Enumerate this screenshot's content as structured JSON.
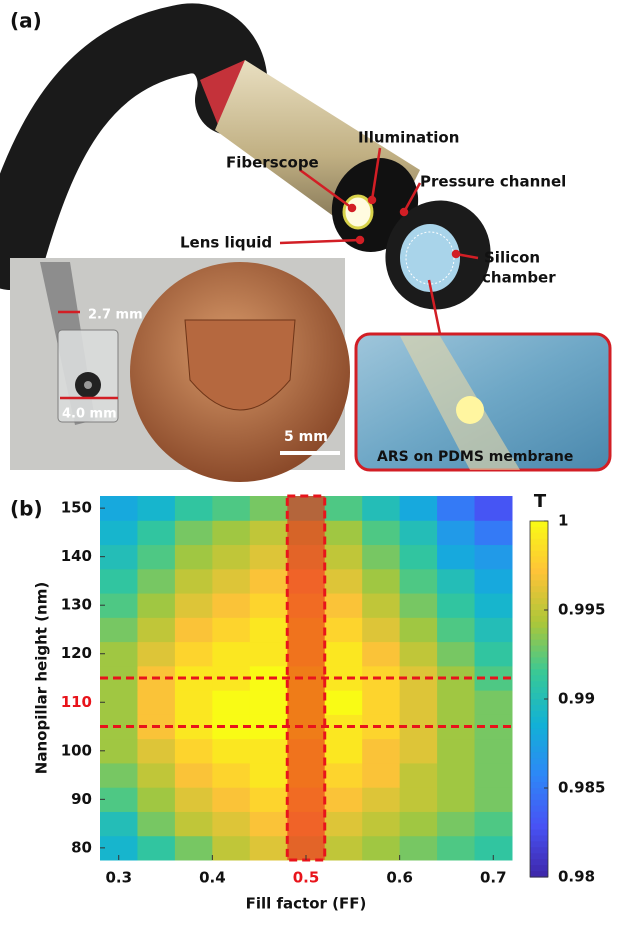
{
  "panel_a": {
    "label": "(a)",
    "illumination": "Illumination",
    "fiberscope": "Fiberscope",
    "pressure_channel": "Pressure channel",
    "lens_liquid": "Lens liquid",
    "silicon_chamber": [
      "Silicon",
      "chamber"
    ],
    "size_tube": "2.7 mm",
    "size_body": "4.0 mm",
    "scale_bar": "5 mm",
    "inset": "ARS on PDMS membrane"
  },
  "chart_data": {
    "type": "heatmap",
    "panel_label": "(b)",
    "xlabel": "Fill factor (FF)",
    "ylabel": "Nanopillar height (nm)",
    "x": [
      0.3,
      0.34,
      0.38,
      0.42,
      0.46,
      0.5,
      0.54,
      0.58,
      0.62,
      0.66,
      0.7
    ],
    "y": [
      80,
      85,
      90,
      95,
      100,
      105,
      110,
      115,
      120,
      125,
      130,
      135,
      140,
      145,
      150
    ],
    "z": [
      [
        0.989,
        0.991,
        0.993,
        0.995,
        0.996,
        0.996,
        0.995,
        0.994,
        0.993,
        0.992,
        0.991
      ],
      [
        0.99,
        0.993,
        0.995,
        0.996,
        0.997,
        0.997,
        0.996,
        0.995,
        0.994,
        0.993,
        0.992
      ],
      [
        0.992,
        0.994,
        0.996,
        0.997,
        0.998,
        0.998,
        0.997,
        0.996,
        0.995,
        0.994,
        0.993
      ],
      [
        0.993,
        0.995,
        0.997,
        0.998,
        0.999,
        0.999,
        0.998,
        0.997,
        0.995,
        0.994,
        0.993
      ],
      [
        0.994,
        0.996,
        0.998,
        0.999,
        0.999,
        0.999,
        0.999,
        0.997,
        0.996,
        0.994,
        0.993
      ],
      [
        0.994,
        0.997,
        0.999,
        1.0,
        1.0,
        1.0,
        0.999,
        0.998,
        0.996,
        0.994,
        0.993
      ],
      [
        0.994,
        0.997,
        0.999,
        1.0,
        1.0,
        1.0,
        1.0,
        0.998,
        0.996,
        0.994,
        0.993
      ],
      [
        0.994,
        0.997,
        0.999,
        0.999,
        1.0,
        1.0,
        0.999,
        0.998,
        0.996,
        0.994,
        0.992
      ],
      [
        0.994,
        0.996,
        0.998,
        0.999,
        0.999,
        0.999,
        0.999,
        0.997,
        0.995,
        0.993,
        0.991
      ],
      [
        0.993,
        0.995,
        0.997,
        0.998,
        0.999,
        0.999,
        0.998,
        0.996,
        0.994,
        0.992,
        0.99
      ],
      [
        0.992,
        0.994,
        0.996,
        0.997,
        0.998,
        0.998,
        0.997,
        0.995,
        0.993,
        0.991,
        0.989
      ],
      [
        0.991,
        0.993,
        0.995,
        0.996,
        0.997,
        0.997,
        0.996,
        0.994,
        0.992,
        0.99,
        0.988
      ],
      [
        0.99,
        0.992,
        0.994,
        0.995,
        0.996,
        0.996,
        0.995,
        0.993,
        0.991,
        0.988,
        0.987
      ],
      [
        0.989,
        0.991,
        0.993,
        0.994,
        0.995,
        0.995,
        0.994,
        0.992,
        0.99,
        0.987,
        0.985
      ],
      [
        0.988,
        0.989,
        0.991,
        0.992,
        0.993,
        0.993,
        0.992,
        0.99,
        0.988,
        0.985,
        0.983
      ]
    ],
    "xlim": [
      0.28,
      0.72
    ],
    "ylim": [
      77.5,
      152.5
    ],
    "xticks": [
      0.3,
      0.4,
      0.5,
      0.6,
      0.7
    ],
    "yticks": [
      80,
      90,
      100,
      110,
      120,
      130,
      140,
      150
    ],
    "colormap": "parula",
    "clim": [
      0.98,
      1
    ],
    "cticks": [
      0.98,
      0.985,
      0.99,
      0.995,
      1
    ],
    "colorbar_label": "T",
    "highlight": {
      "x": 0.5,
      "y": 110,
      "color": "#e8141b"
    }
  }
}
